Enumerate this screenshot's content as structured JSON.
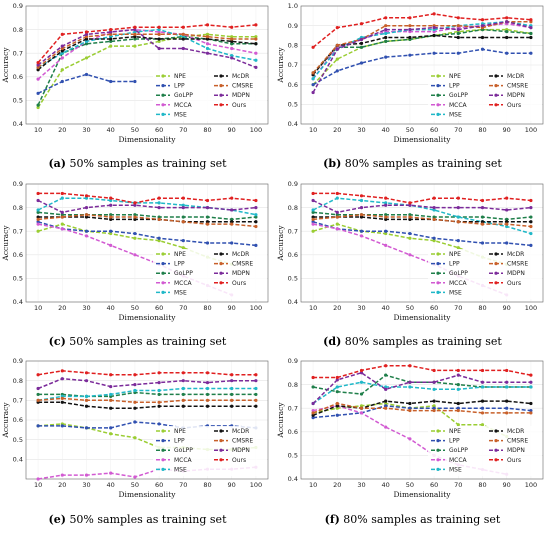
{
  "chart_data": [
    {
      "type": "line",
      "caption_label": "(a)",
      "caption_text": "50% samples as training set",
      "xlabel": "Dimensionality",
      "ylabel": "Accuracy",
      "x": [
        10,
        20,
        30,
        40,
        50,
        60,
        70,
        80,
        90,
        100
      ],
      "ylim": [
        0.4,
        0.9
      ],
      "yticks": [
        0.4,
        0.5,
        0.6,
        0.7,
        0.8,
        0.9
      ],
      "legend_position": "lower-right",
      "series": [
        {
          "name": "NPE",
          "color": "#9acd32",
          "values": [
            0.47,
            0.63,
            0.68,
            0.73,
            0.73,
            0.75,
            0.77,
            0.78,
            0.77,
            0.77
          ]
        },
        {
          "name": "LPP",
          "color": "#3050b0",
          "values": [
            0.53,
            0.58,
            0.61,
            0.58,
            0.58,
            null,
            null,
            null,
            null,
            null
          ]
        },
        {
          "name": "GoLPP",
          "color": "#1f7f4a",
          "values": [
            0.48,
            0.7,
            0.74,
            0.75,
            0.76,
            0.76,
            0.77,
            0.76,
            0.74,
            0.74
          ]
        },
        {
          "name": "MCCA",
          "color": "#d25ad2",
          "values": [
            0.59,
            0.68,
            0.75,
            0.79,
            0.8,
            0.79,
            0.78,
            0.74,
            0.72,
            0.7
          ]
        },
        {
          "name": "MSE",
          "color": "#20b8c8",
          "values": [
            0.64,
            0.7,
            0.75,
            0.77,
            0.79,
            0.8,
            0.77,
            0.72,
            0.69,
            0.67
          ]
        },
        {
          "name": "McDR",
          "color": "#111111",
          "values": [
            0.63,
            0.71,
            0.76,
            0.76,
            0.77,
            0.76,
            0.76,
            0.76,
            0.75,
            0.74
          ]
        },
        {
          "name": "CMSRE",
          "color": "#c8602a",
          "values": [
            0.64,
            0.72,
            0.77,
            0.78,
            0.78,
            0.78,
            0.78,
            0.77,
            0.76,
            0.76
          ]
        },
        {
          "name": "MDPN",
          "color": "#7b2b9a",
          "values": [
            0.65,
            0.73,
            0.78,
            0.79,
            0.8,
            0.72,
            0.72,
            0.7,
            0.68,
            0.64
          ]
        },
        {
          "name": "Ours",
          "color": "#e02020",
          "values": [
            0.66,
            0.78,
            0.79,
            0.8,
            0.81,
            0.81,
            0.81,
            0.82,
            0.81,
            0.82
          ]
        }
      ]
    },
    {
      "type": "line",
      "caption_label": "(b)",
      "caption_text": "80% samples as training set",
      "xlabel": "Dimensionality",
      "ylabel": "Accuracy",
      "x": [
        10,
        20,
        30,
        40,
        50,
        60,
        70,
        80,
        90,
        100
      ],
      "ylim": [
        0.4,
        1.0
      ],
      "yticks": [
        0.4,
        0.5,
        0.6,
        0.7,
        0.8,
        0.9,
        1.0
      ],
      "legend_position": "lower-right",
      "series": [
        {
          "name": "NPE",
          "color": "#9acd32",
          "values": [
            0.6,
            0.73,
            0.79,
            0.82,
            0.83,
            0.85,
            0.87,
            0.88,
            0.88,
            0.86
          ]
        },
        {
          "name": "LPP",
          "color": "#3050b0",
          "values": [
            0.6,
            0.67,
            0.71,
            0.74,
            0.75,
            0.76,
            0.76,
            0.78,
            0.76,
            0.76
          ]
        },
        {
          "name": "GoLPP",
          "color": "#1f7f4a",
          "values": [
            0.66,
            0.79,
            0.79,
            0.82,
            0.83,
            0.85,
            0.86,
            0.88,
            0.87,
            0.86
          ]
        },
        {
          "name": "MCCA",
          "color": "#d25ad2",
          "values": [
            0.63,
            0.79,
            0.83,
            0.87,
            0.87,
            0.87,
            0.89,
            0.9,
            0.91,
            0.89
          ]
        },
        {
          "name": "MSE",
          "color": "#20b8c8",
          "values": [
            0.63,
            0.78,
            0.84,
            0.86,
            0.88,
            0.88,
            0.9,
            0.91,
            0.92,
            0.9
          ]
        },
        {
          "name": "McDR",
          "color": "#111111",
          "values": [
            0.65,
            0.8,
            0.81,
            0.84,
            0.84,
            0.85,
            0.84,
            0.84,
            0.84,
            0.84
          ]
        },
        {
          "name": "CMSRE",
          "color": "#c8602a",
          "values": [
            0.66,
            0.8,
            0.83,
            0.9,
            0.9,
            0.9,
            0.9,
            0.89,
            0.92,
            0.92
          ]
        },
        {
          "name": "MDPN",
          "color": "#7b2b9a",
          "values": [
            0.56,
            0.78,
            0.83,
            0.88,
            0.88,
            0.89,
            0.88,
            0.9,
            0.92,
            0.89
          ]
        },
        {
          "name": "Ours",
          "color": "#e02020",
          "values": [
            0.79,
            0.89,
            0.91,
            0.94,
            0.94,
            0.96,
            0.94,
            0.93,
            0.94,
            0.93
          ]
        }
      ]
    },
    {
      "type": "line",
      "caption_label": "(c)",
      "caption_text": "50% samples as training set",
      "xlabel": "Dimensionality",
      "ylabel": "Accuracy",
      "x": [
        10,
        20,
        30,
        40,
        50,
        60,
        70,
        80,
        90,
        100
      ],
      "ylim": [
        0.4,
        0.9
      ],
      "yticks": [
        0.4,
        0.5,
        0.6,
        0.7,
        0.8,
        0.9
      ],
      "legend_position": "lower-right",
      "series": [
        {
          "name": "NPE",
          "color": "#9acd32",
          "values": [
            0.7,
            0.73,
            0.7,
            0.69,
            0.67,
            0.66,
            0.63,
            0.59,
            0.56,
            null
          ]
        },
        {
          "name": "LPP",
          "color": "#3050b0",
          "values": [
            0.74,
            0.71,
            0.7,
            0.7,
            0.69,
            0.67,
            0.66,
            0.65,
            0.65,
            0.64
          ]
        },
        {
          "name": "GoLPP",
          "color": "#1f7f4a",
          "values": [
            0.78,
            0.77,
            0.77,
            0.77,
            0.77,
            0.76,
            0.76,
            0.76,
            0.75,
            0.76
          ]
        },
        {
          "name": "MCCA",
          "color": "#d25ad2",
          "values": [
            0.73,
            0.71,
            0.68,
            0.64,
            0.6,
            0.56,
            0.51,
            0.47,
            0.43,
            null
          ]
        },
        {
          "name": "MSE",
          "color": "#20b8c8",
          "values": [
            0.79,
            0.84,
            0.84,
            0.83,
            0.82,
            0.82,
            0.81,
            0.8,
            0.79,
            0.77
          ]
        },
        {
          "name": "McDR",
          "color": "#111111",
          "values": [
            0.76,
            0.76,
            0.76,
            0.75,
            0.75,
            0.75,
            0.74,
            0.74,
            0.74,
            0.74
          ]
        },
        {
          "name": "CMSRE",
          "color": "#c8602a",
          "values": [
            0.75,
            0.76,
            0.77,
            0.76,
            0.76,
            0.75,
            0.74,
            0.73,
            0.73,
            0.72
          ]
        },
        {
          "name": "MDPN",
          "color": "#7b2b9a",
          "values": [
            0.83,
            0.78,
            0.8,
            0.81,
            0.81,
            0.8,
            0.8,
            0.8,
            0.79,
            0.8
          ]
        },
        {
          "name": "Ours",
          "color": "#e02020",
          "values": [
            0.86,
            0.86,
            0.85,
            0.84,
            0.82,
            0.84,
            0.84,
            0.83,
            0.84,
            0.83
          ]
        }
      ]
    },
    {
      "type": "line",
      "caption_label": "(d)",
      "caption_text": "80% samples as training set",
      "xlabel": "Dimensionality",
      "ylabel": "Accuracy",
      "x": [
        10,
        20,
        30,
        40,
        50,
        60,
        70,
        80,
        90,
        100
      ],
      "ylim": [
        0.4,
        0.9
      ],
      "yticks": [
        0.4,
        0.5,
        0.6,
        0.7,
        0.8,
        0.9
      ],
      "legend_position": "lower-right",
      "series": [
        {
          "name": "NPE",
          "color": "#9acd32",
          "values": [
            0.7,
            0.73,
            0.7,
            0.69,
            0.67,
            0.66,
            0.63,
            0.59,
            0.56,
            null
          ]
        },
        {
          "name": "LPP",
          "color": "#3050b0",
          "values": [
            0.74,
            0.71,
            0.7,
            0.7,
            0.69,
            0.67,
            0.66,
            0.65,
            0.65,
            0.64
          ]
        },
        {
          "name": "GoLPP",
          "color": "#1f7f4a",
          "values": [
            0.78,
            0.77,
            0.77,
            0.77,
            0.77,
            0.76,
            0.76,
            0.76,
            0.75,
            0.76
          ]
        },
        {
          "name": "MCCA",
          "color": "#d25ad2",
          "values": [
            0.73,
            0.71,
            0.68,
            0.64,
            0.6,
            0.56,
            0.51,
            0.47,
            0.43,
            null
          ]
        },
        {
          "name": "MSE",
          "color": "#20b8c8",
          "values": [
            0.79,
            0.84,
            0.83,
            0.82,
            0.81,
            0.79,
            0.76,
            0.74,
            0.72,
            0.69
          ]
        },
        {
          "name": "McDR",
          "color": "#111111",
          "values": [
            0.76,
            0.76,
            0.76,
            0.75,
            0.75,
            0.75,
            0.74,
            0.74,
            0.74,
            0.74
          ]
        },
        {
          "name": "CMSRE",
          "color": "#c8602a",
          "values": [
            0.75,
            0.76,
            0.77,
            0.76,
            0.76,
            0.75,
            0.74,
            0.73,
            0.73,
            0.72
          ]
        },
        {
          "name": "MDPN",
          "color": "#7b2b9a",
          "values": [
            0.83,
            0.78,
            0.8,
            0.81,
            0.81,
            0.8,
            0.8,
            0.8,
            0.79,
            0.8
          ]
        },
        {
          "name": "Ours",
          "color": "#e02020",
          "values": [
            0.86,
            0.86,
            0.85,
            0.84,
            0.82,
            0.84,
            0.84,
            0.83,
            0.84,
            0.83
          ]
        }
      ]
    },
    {
      "type": "line",
      "caption_label": "(e)",
      "caption_text": "50% samples as training set",
      "xlabel": "Dimensionality",
      "ylabel": "Accuracy",
      "x": [
        10,
        20,
        30,
        40,
        50,
        60,
        70,
        80,
        90,
        100
      ],
      "ylim": [
        0.3,
        0.9
      ],
      "yticks": [
        0.4,
        0.5,
        0.6,
        0.7,
        0.8,
        0.9
      ],
      "legend_position": "lower-right",
      "series": [
        {
          "name": "NPE",
          "color": "#9acd32",
          "values": [
            0.57,
            0.58,
            0.56,
            0.53,
            0.51,
            0.46,
            0.46,
            0.45,
            0.45,
            0.46
          ]
        },
        {
          "name": "LPP",
          "color": "#3050b0",
          "values": [
            0.57,
            0.57,
            0.56,
            0.56,
            0.59,
            0.58,
            0.56,
            0.57,
            0.57,
            0.56
          ]
        },
        {
          "name": "GoLPP",
          "color": "#1f7f4a",
          "values": [
            0.73,
            0.73,
            0.72,
            0.72,
            0.74,
            0.73,
            0.73,
            0.73,
            0.73,
            0.73
          ]
        },
        {
          "name": "MCCA",
          "color": "#d25ad2",
          "values": [
            0.3,
            0.32,
            0.32,
            0.33,
            0.31,
            0.35,
            0.34,
            0.35,
            0.35,
            0.36
          ]
        },
        {
          "name": "MSE",
          "color": "#20b8c8",
          "values": [
            0.7,
            0.72,
            0.72,
            0.73,
            0.75,
            0.75,
            0.76,
            0.76,
            0.76,
            0.76
          ]
        },
        {
          "name": "McDR",
          "color": "#111111",
          "values": [
            0.69,
            0.69,
            0.67,
            0.66,
            0.66,
            0.67,
            0.67,
            0.67,
            0.67,
            0.67
          ]
        },
        {
          "name": "CMSRE",
          "color": "#c8602a",
          "values": [
            0.7,
            0.71,
            0.7,
            0.7,
            0.69,
            0.69,
            0.7,
            0.7,
            0.7,
            0.7
          ]
        },
        {
          "name": "MDPN",
          "color": "#7b2b9a",
          "values": [
            0.76,
            0.81,
            0.8,
            0.77,
            0.78,
            0.79,
            0.8,
            0.79,
            0.8,
            0.8
          ]
        },
        {
          "name": "Ours",
          "color": "#e02020",
          "values": [
            0.83,
            0.85,
            0.84,
            0.83,
            0.83,
            0.84,
            0.84,
            0.84,
            0.83,
            0.83
          ]
        }
      ]
    },
    {
      "type": "line",
      "caption_label": "(f)",
      "caption_text": "80% samples as training set",
      "xlabel": "Dimensionality",
      "ylabel": "Accuracy",
      "x": [
        10,
        20,
        30,
        40,
        50,
        60,
        70,
        80,
        90,
        100
      ],
      "ylim": [
        0.4,
        0.9
      ],
      "yticks": [
        0.4,
        0.5,
        0.6,
        0.7,
        0.8,
        0.9
      ],
      "legend_position": "lower-right",
      "series": [
        {
          "name": "NPE",
          "color": "#9acd32",
          "values": [
            0.68,
            0.7,
            0.71,
            0.72,
            0.7,
            0.71,
            0.63,
            0.63,
            0.58,
            null
          ]
        },
        {
          "name": "LPP",
          "color": "#3050b0",
          "values": [
            0.66,
            0.67,
            0.68,
            0.71,
            0.7,
            0.7,
            0.7,
            0.7,
            0.7,
            0.69
          ]
        },
        {
          "name": "GoLPP",
          "color": "#1f7f4a",
          "values": [
            0.79,
            0.77,
            0.76,
            0.84,
            0.81,
            0.81,
            0.8,
            0.79,
            0.79,
            0.79
          ]
        },
        {
          "name": "MCCA",
          "color": "#d25ad2",
          "values": [
            0.69,
            0.71,
            0.68,
            0.62,
            0.57,
            0.5,
            0.46,
            0.44,
            0.42,
            null
          ]
        },
        {
          "name": "MSE",
          "color": "#20b8c8",
          "values": [
            0.72,
            0.79,
            0.81,
            0.79,
            0.79,
            0.78,
            0.78,
            0.79,
            0.79,
            0.79
          ]
        },
        {
          "name": "McDR",
          "color": "#111111",
          "values": [
            0.67,
            0.71,
            0.7,
            0.73,
            0.72,
            0.73,
            0.72,
            0.73,
            0.73,
            0.72
          ]
        },
        {
          "name": "CMSRE",
          "color": "#c8602a",
          "values": [
            0.68,
            0.72,
            0.7,
            0.7,
            0.69,
            0.69,
            0.69,
            0.68,
            0.68,
            0.68
          ]
        },
        {
          "name": "MDPN",
          "color": "#7b2b9a",
          "values": [
            0.72,
            0.82,
            0.85,
            0.78,
            0.81,
            0.81,
            0.84,
            0.81,
            0.81,
            0.81
          ]
        },
        {
          "name": "Ours",
          "color": "#e02020",
          "values": [
            0.83,
            0.83,
            0.86,
            0.88,
            0.88,
            0.86,
            0.86,
            0.86,
            0.86,
            0.84
          ]
        }
      ]
    }
  ]
}
